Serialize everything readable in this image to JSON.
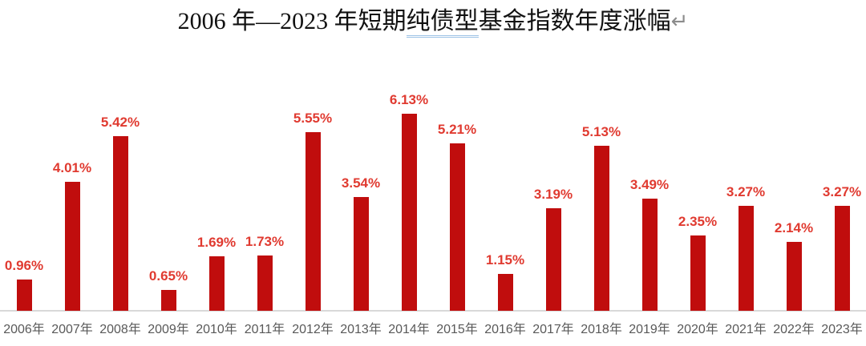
{
  "title": {
    "prefix": "2006 年—2023 年短期",
    "underlined": "纯债型",
    "suffix": "基金指数年度涨幅",
    "return_mark": "↵"
  },
  "chart_data": {
    "type": "bar",
    "title": "2006 年—2023 年短期纯债型基金指数年度涨幅",
    "categories": [
      "2006年",
      "2007年",
      "2008年",
      "2009年",
      "2010年",
      "2011年",
      "2012年",
      "2013年",
      "2014年",
      "2015年",
      "2016年",
      "2017年",
      "2018年",
      "2019年",
      "2020年",
      "2021年",
      "2022年",
      "2023年"
    ],
    "values": [
      0.96,
      4.01,
      5.42,
      0.65,
      1.69,
      1.73,
      5.55,
      3.54,
      6.13,
      5.21,
      1.15,
      3.19,
      5.13,
      3.49,
      2.35,
      3.27,
      2.14,
      3.27
    ],
    "labels": [
      "0.96%",
      "4.01%",
      "5.42%",
      "0.65%",
      "1.69%",
      "1.73%",
      "5.55%",
      "3.54%",
      "6.13%",
      "5.21%",
      "1.15%",
      "3.19%",
      "5.13%",
      "3.49%",
      "2.35%",
      "3.27%",
      "2.14%",
      "3.27%"
    ],
    "xlabel": "",
    "ylabel": "",
    "ylim": [
      0,
      6.5
    ],
    "grid": false,
    "legend": false,
    "bar_color": "#c00d0d",
    "label_color": "#e03a30",
    "tick_color": "#595959",
    "axis_line_color": "#d9d9d9"
  }
}
